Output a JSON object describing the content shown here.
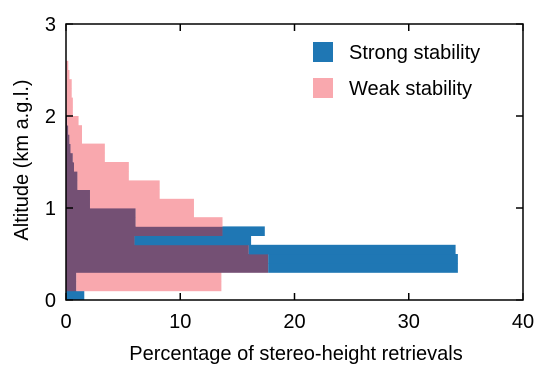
{
  "chart_data": {
    "type": "bar",
    "orientation": "horizontal",
    "xlabel": "Percentage of stereo-height retrievals",
    "ylabel": "Altitude (km a.g.l.)",
    "xlim": [
      0,
      40
    ],
    "ylim": [
      0,
      3
    ],
    "xticks": [
      "0",
      "10",
      "20",
      "30",
      "40"
    ],
    "yticks": [
      "0",
      "1",
      "2",
      "3"
    ],
    "grid": false,
    "legend_position": "top-right",
    "bin_height_km": 0.1,
    "overlap_color": "#745074",
    "series": [
      {
        "name": "Strong stability",
        "color": "#1f77b4",
        "bins": [
          {
            "y0": 0.0,
            "y1": 0.1,
            "value": 1.6
          },
          {
            "y0": 0.1,
            "y1": 0.2,
            "value": 0.9
          },
          {
            "y0": 0.2,
            "y1": 0.3,
            "value": 0.9
          },
          {
            "y0": 0.3,
            "y1": 0.4,
            "value": 34.3
          },
          {
            "y0": 0.4,
            "y1": 0.5,
            "value": 34.3
          },
          {
            "y0": 0.5,
            "y1": 0.6,
            "value": 34.1
          },
          {
            "y0": 0.6,
            "y1": 0.7,
            "value": 16.2
          },
          {
            "y0": 0.7,
            "y1": 0.8,
            "value": 17.4
          },
          {
            "y0": 0.8,
            "y1": 0.9,
            "value": 6.1
          },
          {
            "y0": 0.9,
            "y1": 1.0,
            "value": 6.1
          },
          {
            "y0": 1.0,
            "y1": 1.1,
            "value": 2.1
          },
          {
            "y0": 1.1,
            "y1": 1.2,
            "value": 2.1
          },
          {
            "y0": 1.2,
            "y1": 1.3,
            "value": 1.0
          },
          {
            "y0": 1.3,
            "y1": 1.4,
            "value": 1.0
          },
          {
            "y0": 1.4,
            "y1": 1.5,
            "value": 0.7
          },
          {
            "y0": 1.5,
            "y1": 1.6,
            "value": 0.6
          },
          {
            "y0": 1.6,
            "y1": 1.7,
            "value": 0.4
          },
          {
            "y0": 1.7,
            "y1": 1.8,
            "value": 0.3
          },
          {
            "y0": 1.8,
            "y1": 1.9,
            "value": 0.2
          },
          {
            "y0": 1.9,
            "y1": 2.0,
            "value": 0.1
          }
        ]
      },
      {
        "name": "Weak stability",
        "color": "#f9a8ae",
        "bins": [
          {
            "y0": 0.1,
            "y1": 0.2,
            "value": 13.6
          },
          {
            "y0": 0.2,
            "y1": 0.3,
            "value": 13.6
          },
          {
            "y0": 0.3,
            "y1": 0.4,
            "value": 17.7
          },
          {
            "y0": 0.4,
            "y1": 0.5,
            "value": 17.7
          },
          {
            "y0": 0.5,
            "y1": 0.6,
            "value": 16.0
          },
          {
            "y0": 0.6,
            "y1": 0.7,
            "value": 6.0
          },
          {
            "y0": 0.7,
            "y1": 0.8,
            "value": 13.7
          },
          {
            "y0": 0.8,
            "y1": 0.9,
            "value": 13.7
          },
          {
            "y0": 0.9,
            "y1": 1.0,
            "value": 11.2
          },
          {
            "y0": 1.0,
            "y1": 1.1,
            "value": 11.2
          },
          {
            "y0": 1.1,
            "y1": 1.2,
            "value": 8.2
          },
          {
            "y0": 1.2,
            "y1": 1.3,
            "value": 8.2
          },
          {
            "y0": 1.3,
            "y1": 1.4,
            "value": 5.5
          },
          {
            "y0": 1.4,
            "y1": 1.5,
            "value": 5.5
          },
          {
            "y0": 1.5,
            "y1": 1.6,
            "value": 3.4
          },
          {
            "y0": 1.6,
            "y1": 1.7,
            "value": 3.4
          },
          {
            "y0": 1.7,
            "y1": 1.8,
            "value": 1.4
          },
          {
            "y0": 1.8,
            "y1": 1.9,
            "value": 1.4
          },
          {
            "y0": 1.9,
            "y1": 2.0,
            "value": 1.1
          },
          {
            "y0": 2.0,
            "y1": 2.1,
            "value": 0.6
          },
          {
            "y0": 2.1,
            "y1": 2.2,
            "value": 0.6
          },
          {
            "y0": 2.2,
            "y1": 2.3,
            "value": 0.5
          },
          {
            "y0": 2.3,
            "y1": 2.4,
            "value": 0.5
          },
          {
            "y0": 2.4,
            "y1": 2.5,
            "value": 0.3
          },
          {
            "y0": 2.5,
            "y1": 2.6,
            "value": 0.2
          }
        ]
      }
    ]
  }
}
